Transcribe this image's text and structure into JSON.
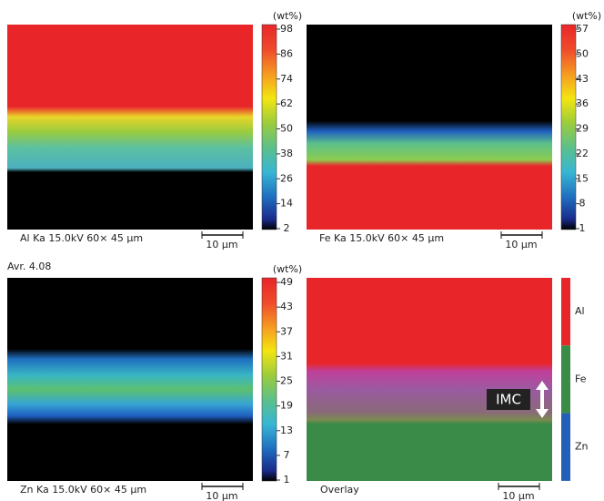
{
  "panels": [
    {
      "caption": "Al Ka 15.0kV 60× 45 µm",
      "scale": "10 µm",
      "unit": "(wt%)",
      "ticks": [
        98,
        86,
        74,
        62,
        50,
        38,
        26,
        14,
        2
      ]
    },
    {
      "caption": "Fe Ka 15.0kV 60× 45 µm",
      "scale": "10 µm",
      "unit": "(wt%)",
      "ticks": [
        57,
        50,
        43,
        36,
        29,
        22,
        15,
        8,
        1
      ]
    },
    {
      "caption": "Zn Ka 15.0kV 60× 45 µm",
      "scale": "10 µm",
      "unit": "(wt%)",
      "ticks": [
        49,
        43,
        37,
        31,
        25,
        19,
        13,
        7,
        1
      ]
    }
  ],
  "average": "Avr. 4.08",
  "overlay": {
    "caption": "Overlay",
    "scale": "10 µm",
    "legend": [
      "Al",
      "Fe",
      "Zn"
    ],
    "annotation": "IMC"
  }
}
